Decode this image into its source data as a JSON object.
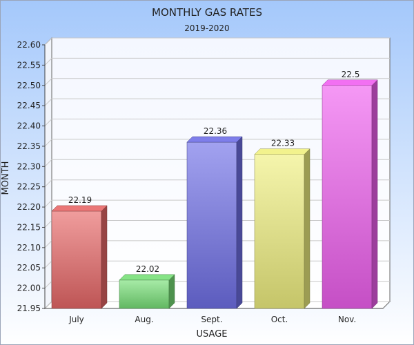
{
  "chart_data": {
    "type": "bar",
    "title": "MONTHLY GAS RATES",
    "subtitle": "2019-2020",
    "xlabel": "USAGE",
    "ylabel": "MONTH",
    "categories": [
      "July",
      "Aug.",
      "Sept.",
      "Oct.",
      "Nov."
    ],
    "values": [
      22.19,
      22.02,
      22.36,
      22.33,
      22.5
    ],
    "value_labels": [
      "22.19",
      "22.02",
      "22.36",
      "22.33",
      "22.5"
    ],
    "ylim": [
      21.95,
      22.6
    ],
    "yticks": [
      "21.95",
      "22.00",
      "22.05",
      "22.10",
      "22.15",
      "22.20",
      "22.25",
      "22.30",
      "22.35",
      "22.40",
      "22.45",
      "22.50",
      "22.55",
      "22.60"
    ],
    "grid": true,
    "legend": "none",
    "colors": [
      "#e86868",
      "#78e078",
      "#7070e8",
      "#f0f080",
      "#f060f0"
    ],
    "background": "#a9cdfc"
  }
}
